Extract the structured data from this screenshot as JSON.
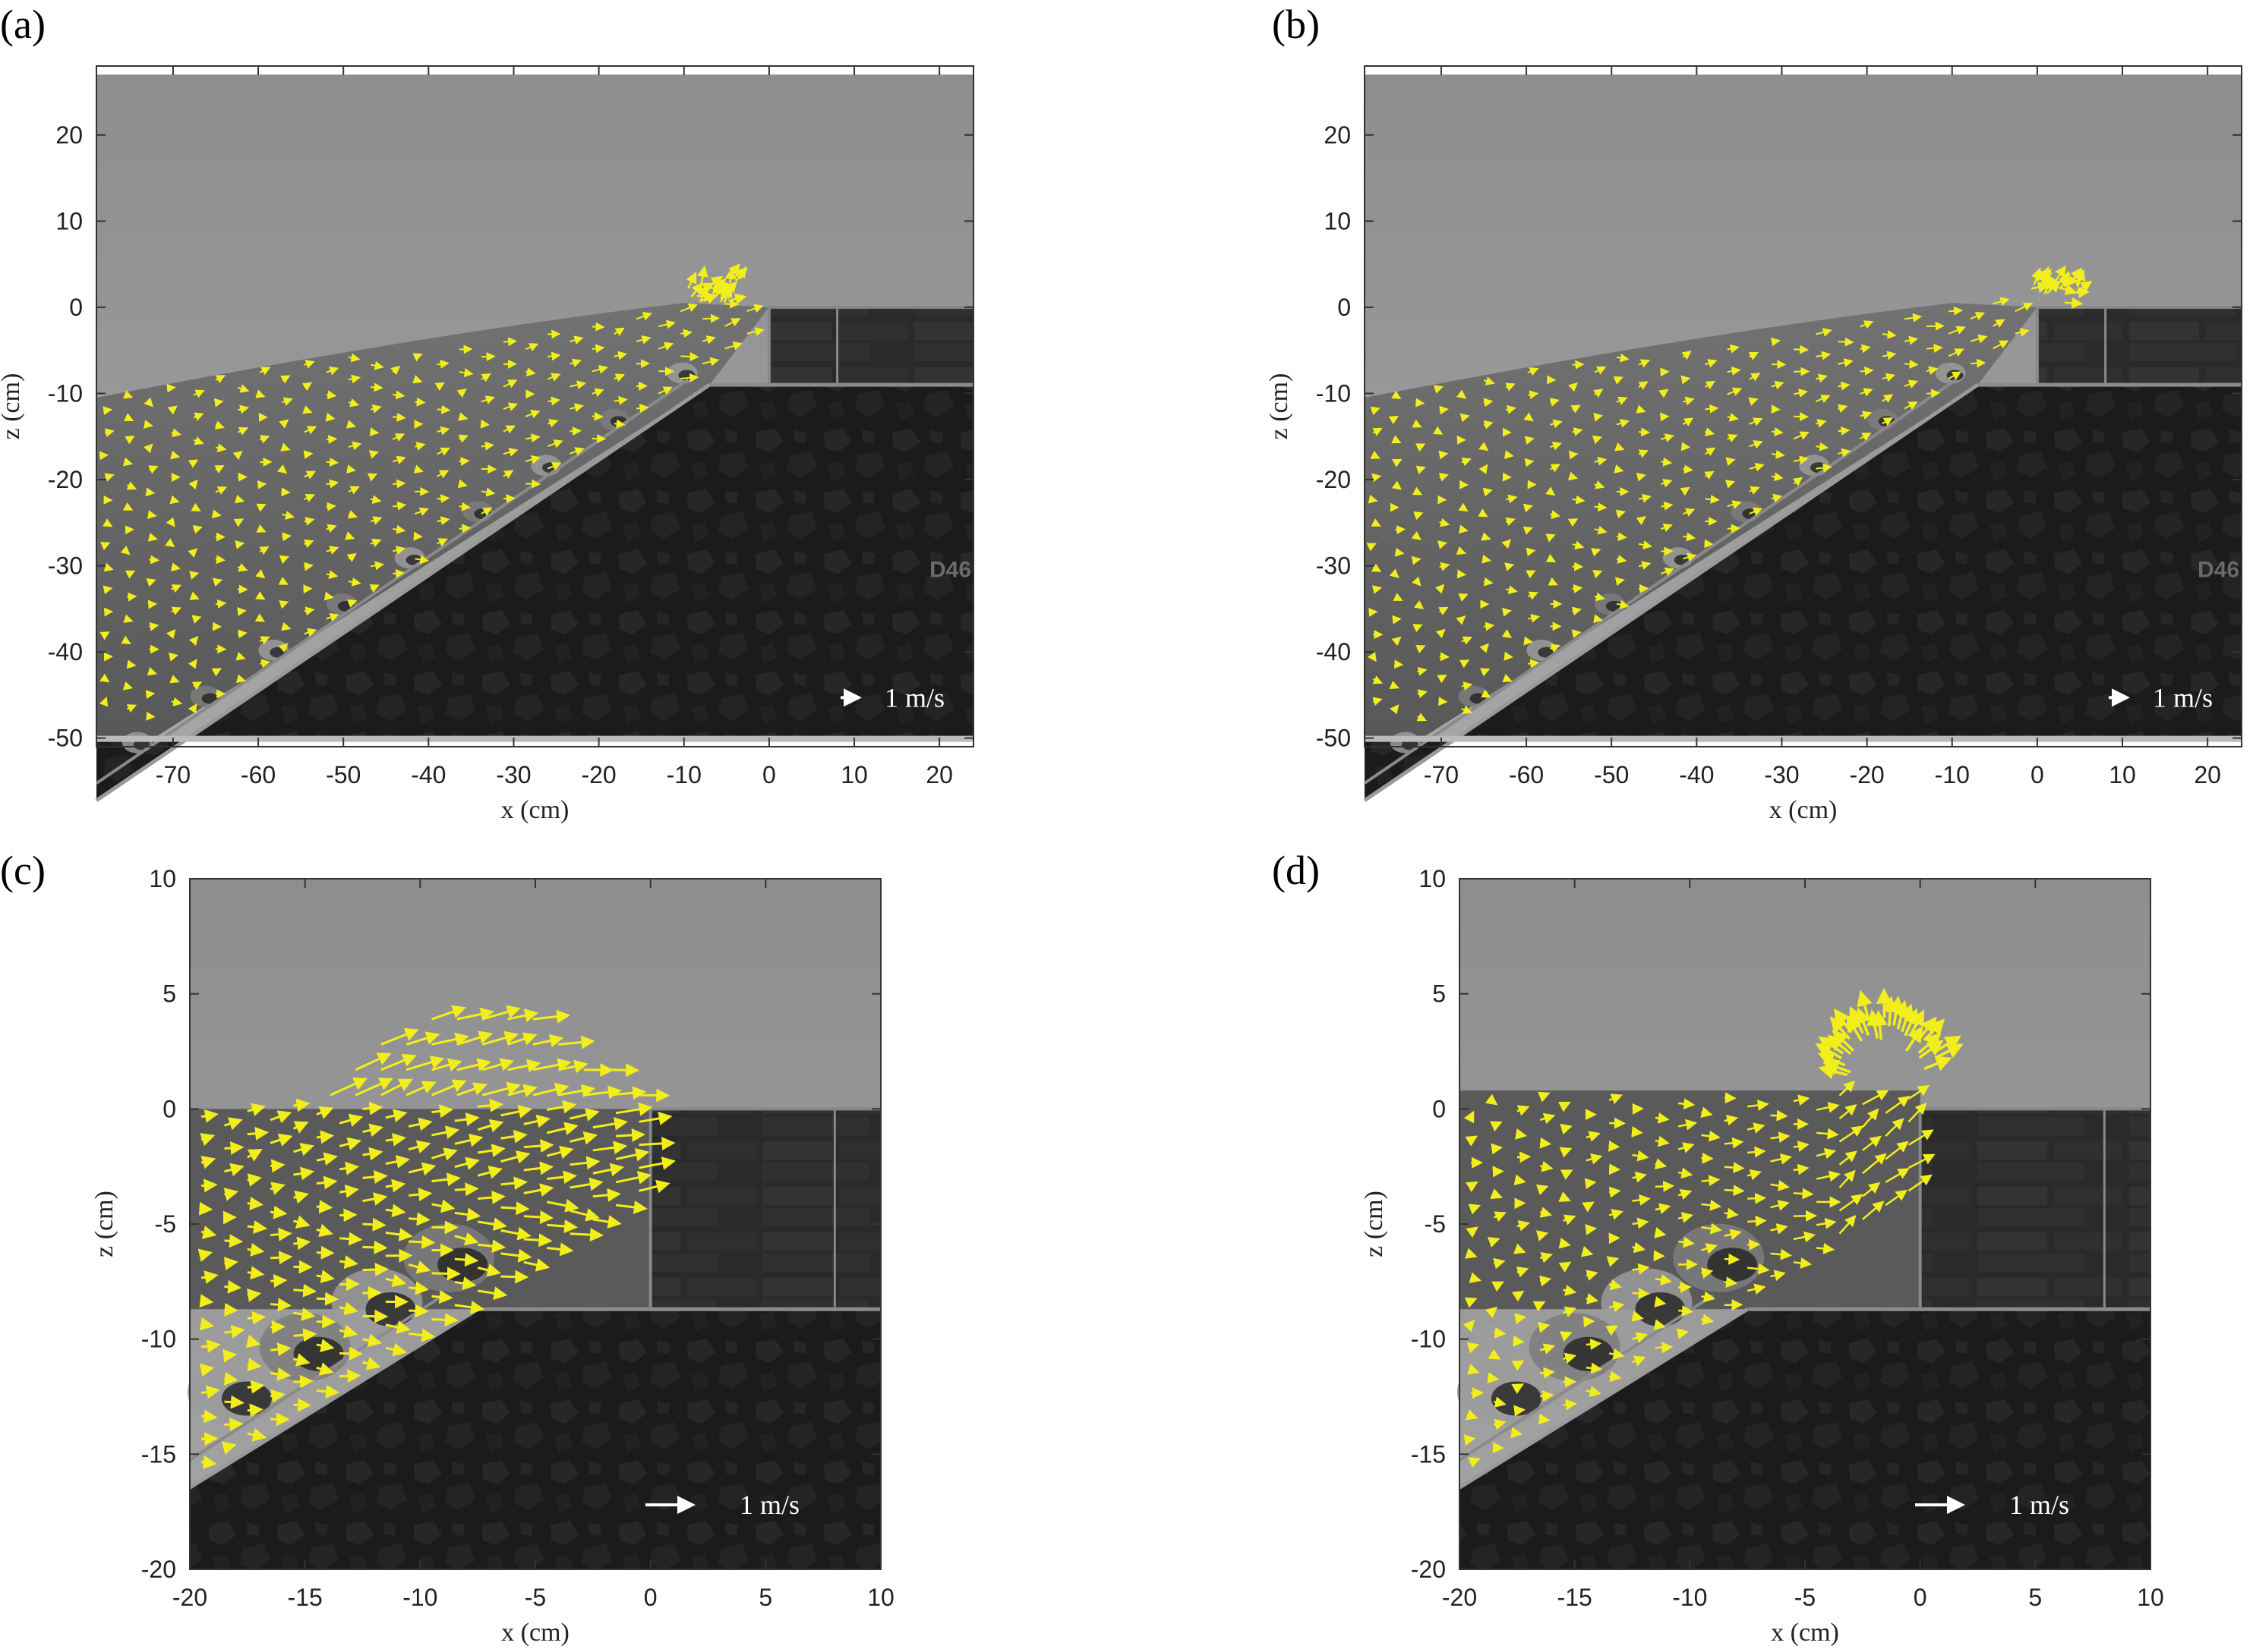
{
  "panels": [
    {
      "label": "(a)",
      "xlabel": "x (cm)",
      "ylabel": "z (cm)",
      "xlim": [
        -79,
        24
      ],
      "ylim": [
        -51,
        28
      ],
      "image_z_range": [
        -50,
        27
      ],
      "xticks": [
        -70,
        -60,
        -50,
        -40,
        -30,
        -20,
        -10,
        0,
        10,
        20
      ],
      "yticks": [
        20,
        10,
        0,
        -10,
        -20,
        -30,
        -40,
        -50
      ],
      "scale_label": "1 m/s",
      "watermark": "D46",
      "view": "wide",
      "crest_x": 0,
      "splash_x": -8
    },
    {
      "label": "(b)",
      "xlabel": "x (cm)",
      "ylabel": "z (cm)",
      "xlim": [
        -79,
        24
      ],
      "ylim": [
        -51,
        28
      ],
      "image_z_range": [
        -50,
        27
      ],
      "xticks": [
        -70,
        -60,
        -50,
        -40,
        -30,
        -20,
        -10,
        0,
        10,
        20
      ],
      "yticks": [
        20,
        10,
        0,
        -10,
        -20,
        -30,
        -40,
        -50
      ],
      "scale_label": "1 m/s",
      "watermark": "D46",
      "view": "wide",
      "crest_x": 0,
      "splash_x": 1
    },
    {
      "label": "(c)",
      "xlabel": "x (cm)",
      "ylabel": "z (cm)",
      "xlim": [
        -20,
        10
      ],
      "ylim": [
        -20,
        10
      ],
      "image_z_range": [
        -20,
        10
      ],
      "xticks": [
        -20,
        -15,
        -10,
        -5,
        0,
        5,
        10
      ],
      "yticks": [
        10,
        5,
        0,
        -5,
        -10,
        -15,
        -20
      ],
      "scale_label": "1 m/s",
      "view": "zoom",
      "flow": "overtopping"
    },
    {
      "label": "(d)",
      "xlabel": "x (cm)",
      "ylabel": "z (cm)",
      "xlim": [
        -20,
        10
      ],
      "ylim": [
        -20,
        10
      ],
      "image_z_range": [
        -20,
        10
      ],
      "xticks": [
        -20,
        -15,
        -10,
        -5,
        0,
        5,
        10
      ],
      "yticks": [
        10,
        5,
        0,
        -5,
        -10,
        -15,
        -20
      ],
      "scale_label": "1 m/s",
      "view": "zoom",
      "flow": "splash"
    }
  ],
  "colors": {
    "vectors": "#f2ee1c",
    "background_water": "#8a8a8a",
    "dark_core": "#1a1a1a",
    "scale_arrow": "#ffffff"
  }
}
